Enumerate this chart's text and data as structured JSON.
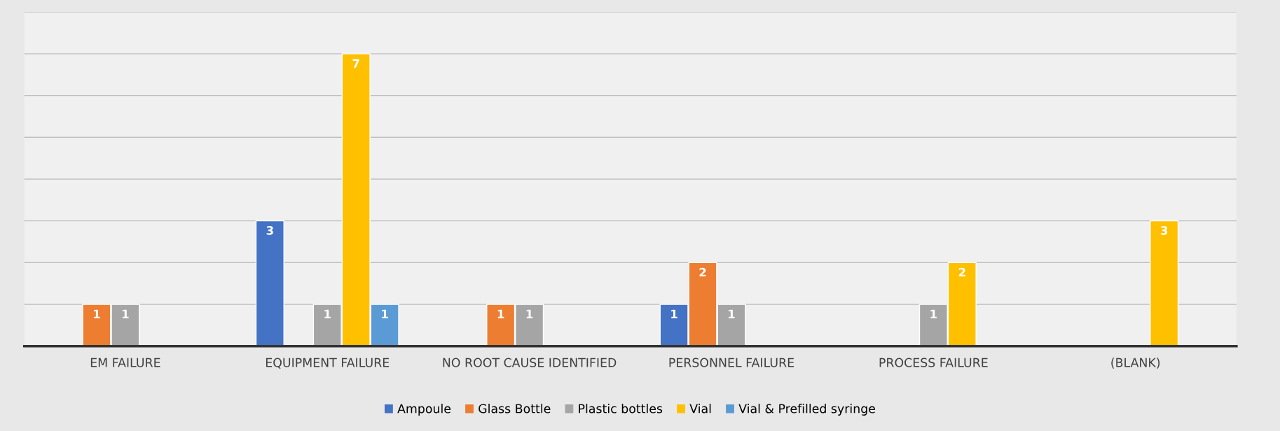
{
  "chart_data": {
    "type": "bar",
    "categories": [
      "EM FAILURE",
      "EQUIPMENT FAILURE",
      "NO ROOT CAUSE IDENTIFIED",
      "PERSONNEL FAILURE",
      "PROCESS FAILURE",
      "(BLANK)"
    ],
    "series": [
      {
        "name": "Ampoule",
        "color": "#4472c4",
        "values": [
          null,
          3,
          null,
          1,
          null,
          null
        ]
      },
      {
        "name": "Glass Bottle",
        "color": "#ed7d31",
        "values": [
          1,
          null,
          1,
          2,
          null,
          null
        ]
      },
      {
        "name": "Plastic bottles",
        "color": "#a5a5a5",
        "values": [
          1,
          1,
          1,
          1,
          1,
          null
        ]
      },
      {
        "name": "Vial",
        "color": "#ffc000",
        "values": [
          null,
          7,
          null,
          null,
          2,
          3
        ]
      },
      {
        "name": "Vial & Prefilled syringe",
        "color": "#5b9bd5",
        "values": [
          null,
          1,
          null,
          null,
          null,
          null
        ]
      }
    ],
    "ylim": [
      0,
      8
    ],
    "yticks": [
      {
        "value": 0,
        "label": null
      },
      {
        "value": 1,
        "label": null
      },
      {
        "value": 2,
        "label": null
      },
      {
        "value": 3,
        "label": null
      },
      {
        "value": 4,
        "label": null
      },
      {
        "value": 5,
        "label": null
      },
      {
        "value": 6,
        "label": null
      },
      {
        "value": 7,
        "label": null
      },
      {
        "value": 8,
        "label": null
      }
    ],
    "tick_labels": "x",
    "grid": "y",
    "legend": "bottom",
    "data_labels": true
  }
}
